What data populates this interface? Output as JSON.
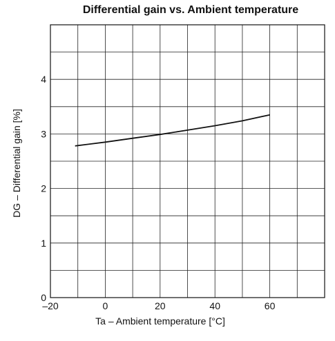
{
  "chart_data": {
    "type": "line",
    "title": "Differential gain vs. Ambient temperature",
    "xlabel": "Ta – Ambient temperature [°C]",
    "ylabel": "DG – Differential gain [%]",
    "xlim": [
      -20,
      80
    ],
    "ylim": [
      0,
      5
    ],
    "x_major_ticks": [
      -20,
      0,
      20,
      40,
      60
    ],
    "x_tick_labels": [
      "–20",
      "0",
      "20",
      "40",
      "60"
    ],
    "y_major_ticks": [
      0,
      1,
      2,
      3,
      4
    ],
    "y_tick_labels": [
      "0",
      "1",
      "2",
      "3",
      "4"
    ],
    "x_grid_step": 10,
    "y_grid_step": 0.5,
    "grid": true,
    "series": [
      {
        "color": "#111111",
        "x": [
          -11,
          0,
          10,
          20,
          30,
          40,
          50,
          60
        ],
        "y": [
          2.78,
          2.85,
          2.92,
          2.99,
          3.07,
          3.15,
          3.24,
          3.35
        ]
      }
    ]
  }
}
